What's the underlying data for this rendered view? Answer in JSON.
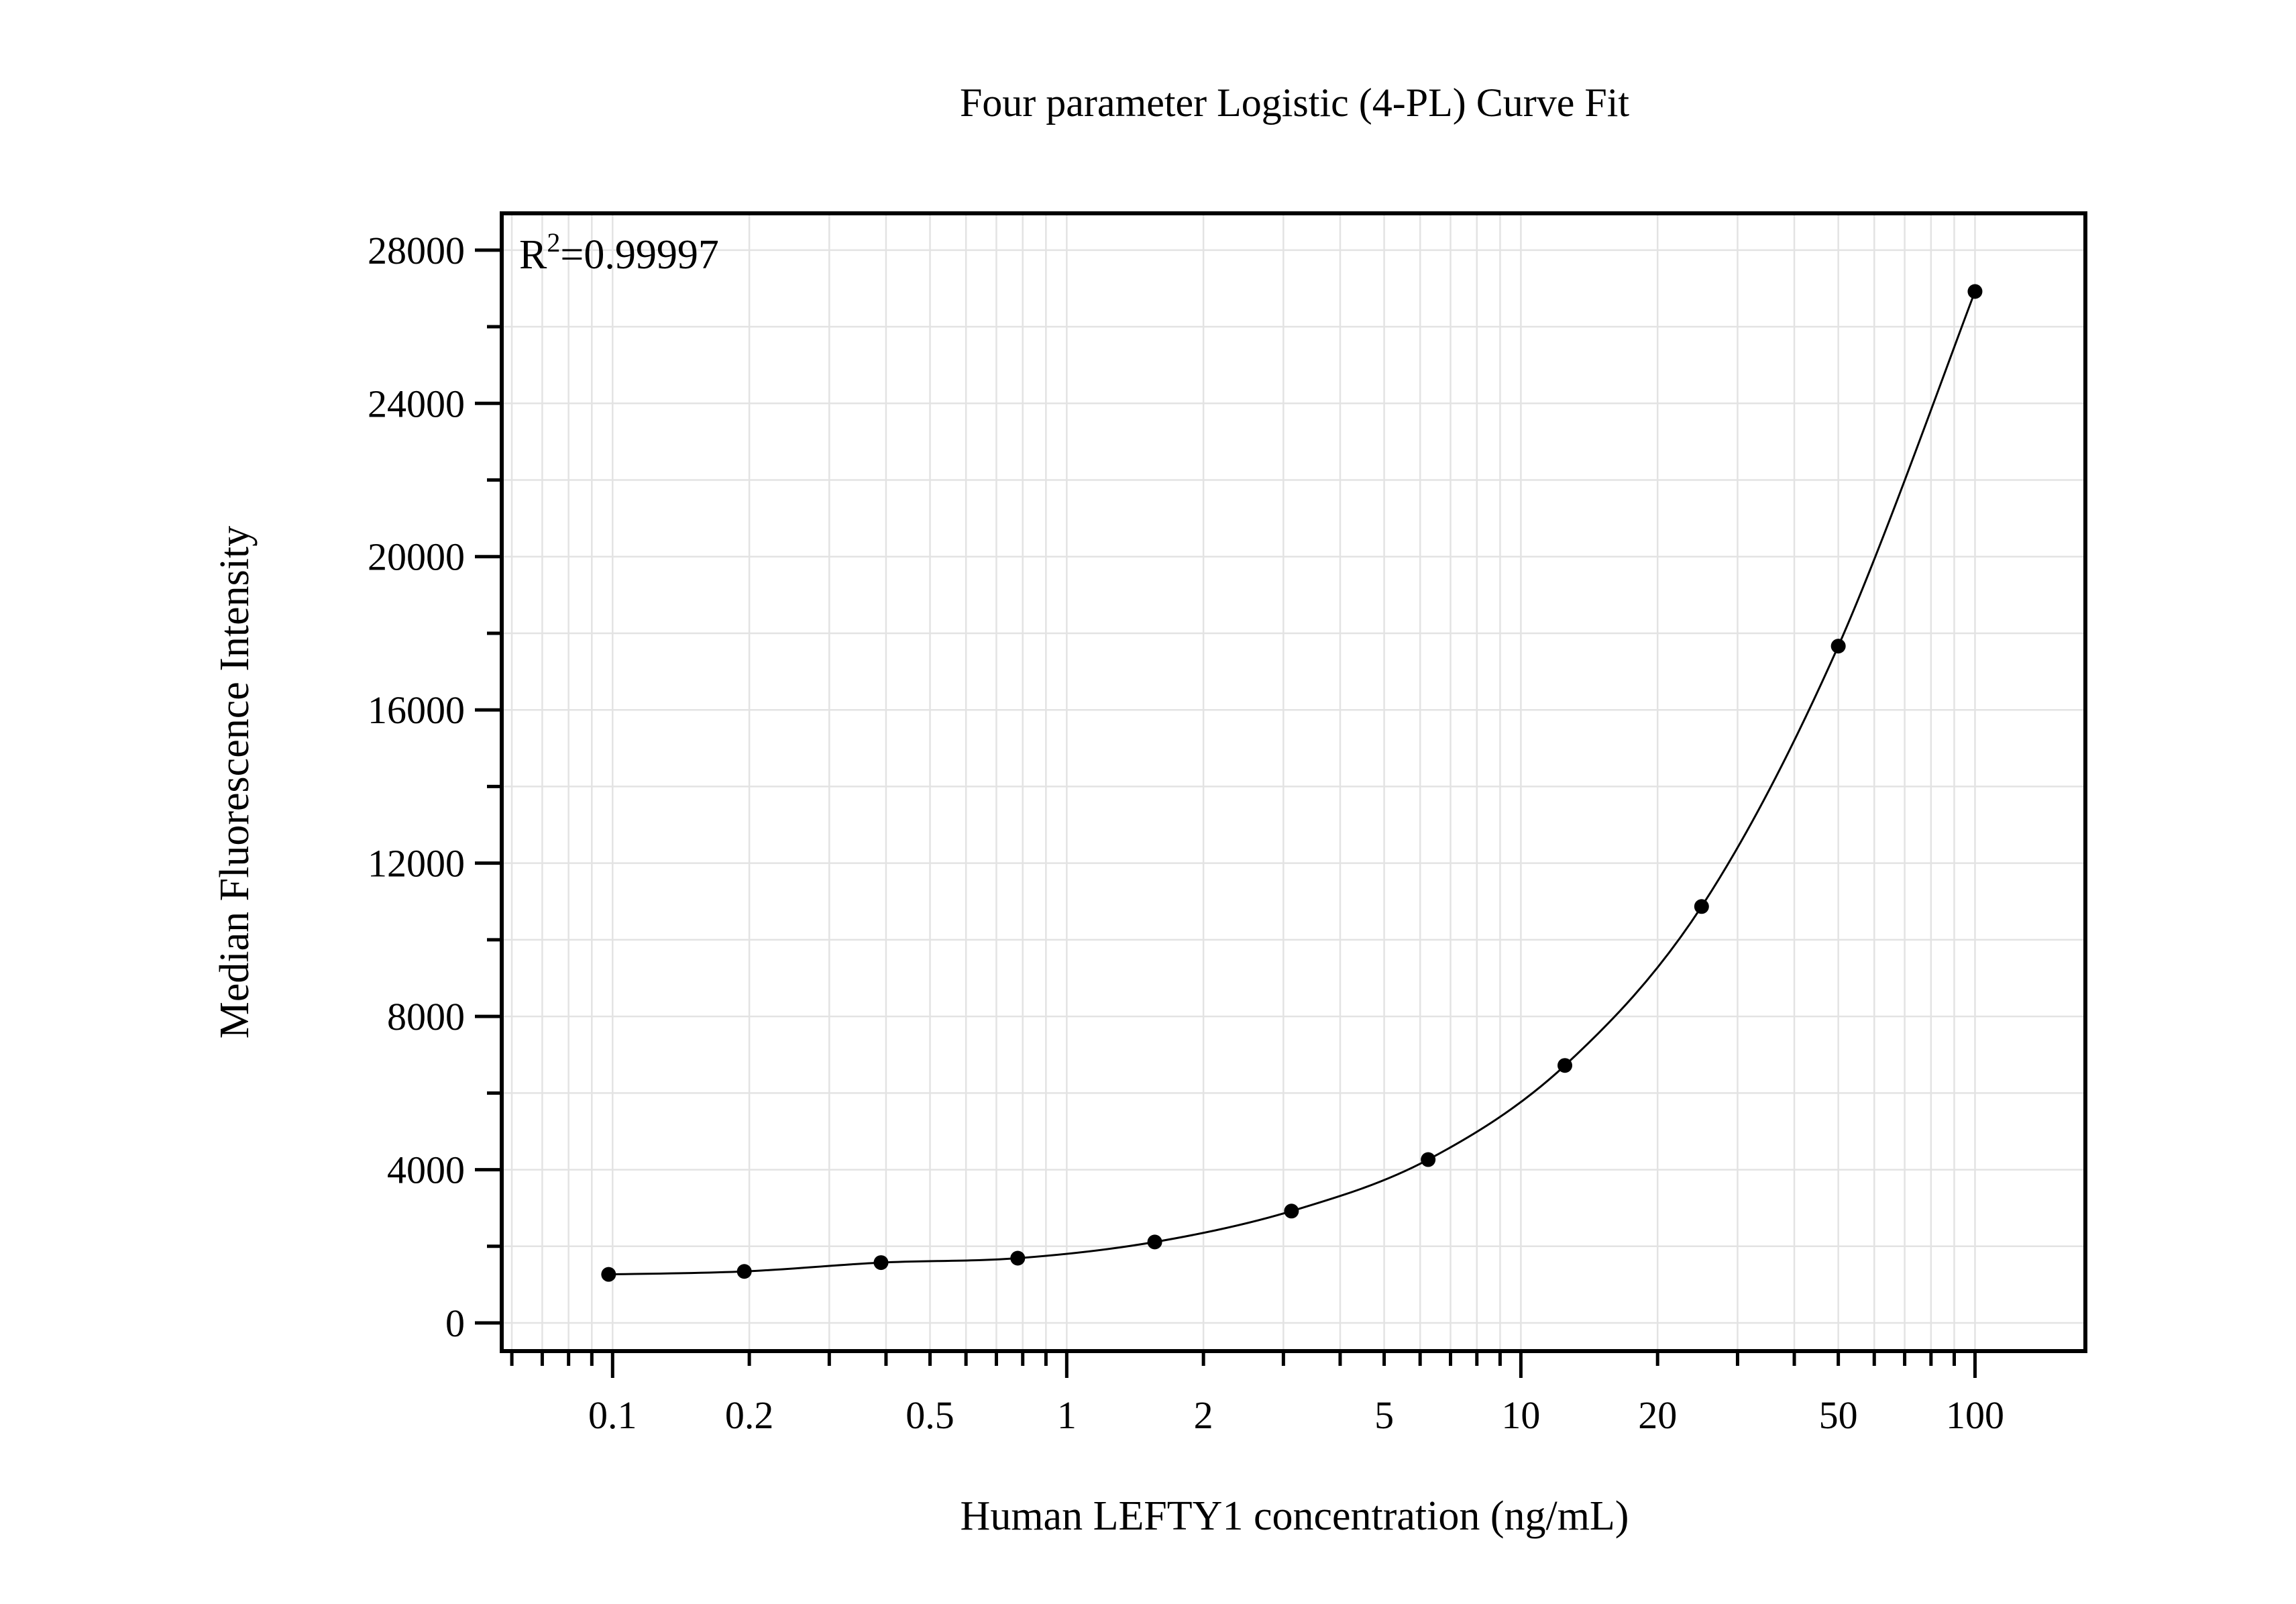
{
  "chart_data": {
    "type": "scatter",
    "title": "Four parameter Logistic (4-PL) Curve Fit",
    "xlabel": "Human LEFTY1 concentration (ng/mL)",
    "ylabel": "Median Fluorescence Intensity",
    "annotation": {
      "base": "R",
      "sup": "2",
      "rest": "=0.99997"
    },
    "x_scale": "log",
    "xlim": [
      0.057,
      175
    ],
    "ylim": [
      -735,
      28960
    ],
    "x_ticks": [
      0.1,
      0.2,
      0.5,
      1,
      2,
      5,
      10,
      20,
      50,
      100
    ],
    "x_tick_labels": [
      "0.1",
      "0.2",
      "0.5",
      "1",
      "2",
      "5",
      "10",
      "20",
      "50",
      "100"
    ],
    "y_ticks": [
      0,
      4000,
      8000,
      12000,
      16000,
      20000,
      24000,
      28000
    ],
    "y_tick_labels": [
      "0",
      "4000",
      "8000",
      "12000",
      "16000",
      "20000",
      "24000",
      "28000"
    ],
    "grid": true,
    "colors": {
      "points": "#000000",
      "curve": "#000000",
      "grid": "#e3e3e3"
    },
    "series": [
      {
        "x": [
          0.098,
          0.195,
          0.39,
          0.78,
          1.5625,
          3.125,
          6.25,
          12.5,
          25,
          50,
          100
        ],
        "y": [
          1267,
          1344,
          1575,
          1690,
          2112,
          2919,
          4263,
          6720,
          10868,
          17665,
          26920
        ]
      }
    ]
  }
}
